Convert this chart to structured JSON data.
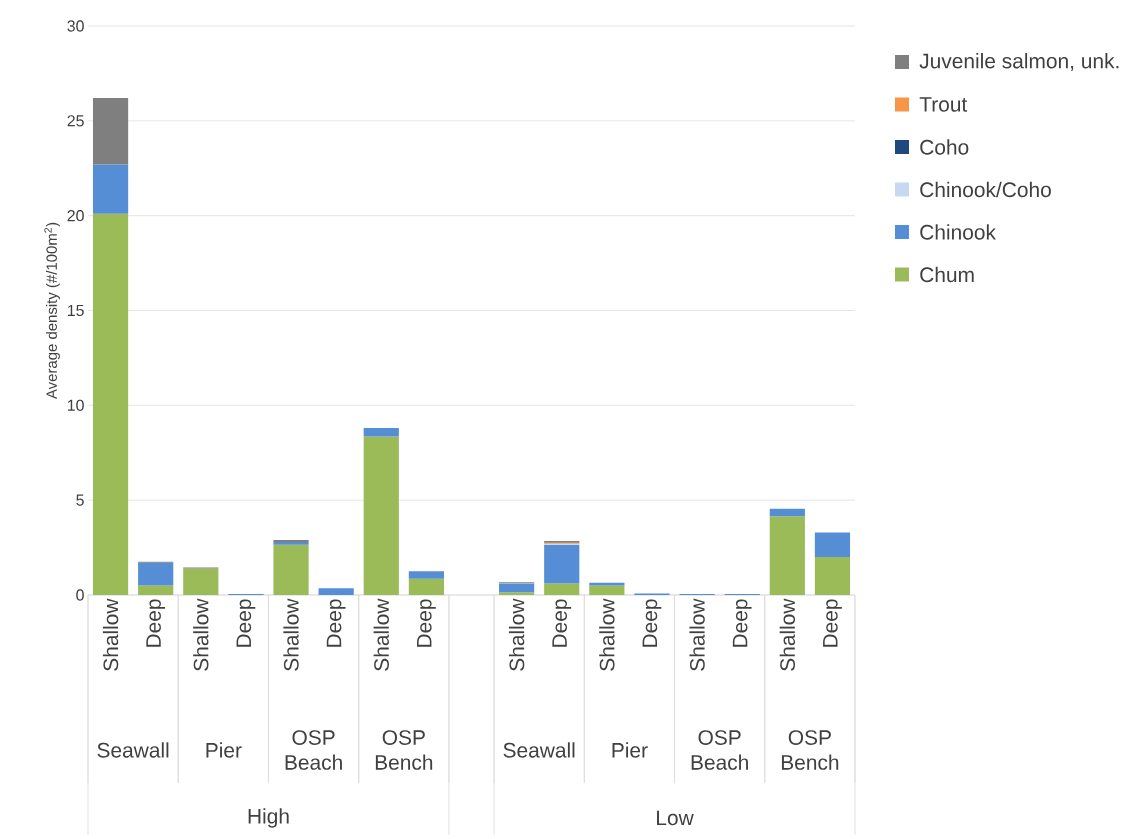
{
  "chart_data": {
    "type": "bar",
    "stacked": true,
    "ylabel": "Average density (#/100m$^{2}$)",
    "categories": [
      "Shallow",
      "Deep",
      "Shallow",
      "Deep",
      "Shallow",
      "Deep",
      "Shallow",
      "Deep",
      null,
      "Shallow",
      "Deep",
      "Shallow",
      "Deep",
      "Shallow",
      "Deep",
      "Shallow",
      "Deep"
    ],
    "series": [
      {
        "name": "Chum",
        "color": "#9bbb59",
        "values": [
          20.1,
          0.5,
          1.4,
          null,
          2.65,
          null,
          8.35,
          0.85,
          null,
          0.15,
          0.6,
          0.5,
          null,
          null,
          null,
          4.15,
          2.0
        ]
      },
      {
        "name": "Chinook",
        "color": "#558ed5",
        "values": [
          2.6,
          1.2,
          null,
          0.05,
          0.15,
          0.35,
          0.45,
          0.4,
          null,
          0.45,
          2.05,
          0.15,
          0.08,
          0.05,
          0.05,
          0.4,
          1.3
        ]
      },
      {
        "name": "Chinook/Coho",
        "color": "#c6d9f1",
        "values": [
          null,
          null,
          null,
          null,
          null,
          null,
          null,
          null,
          null,
          0.02,
          0.05,
          null,
          null,
          null,
          null,
          null,
          null
        ]
      },
      {
        "name": "Coho",
        "color": "#1f497d",
        "values": [
          null,
          null,
          null,
          null,
          null,
          null,
          null,
          null,
          null,
          null,
          null,
          null,
          null,
          null,
          null,
          null,
          null
        ]
      },
      {
        "name": "Trout",
        "color": "#f79646",
        "values": [
          null,
          null,
          null,
          null,
          null,
          null,
          null,
          null,
          null,
          null,
          0.05,
          null,
          null,
          null,
          null,
          null,
          null
        ]
      },
      {
        "name": "Juvenile salmon, unk.",
        "color": "#7f7f7f",
        "values": [
          3.5,
          0.05,
          0.05,
          null,
          0.1,
          null,
          null,
          null,
          null,
          0.05,
          0.1,
          null,
          null,
          null,
          null,
          null,
          null
        ]
      }
    ],
    "ylim": [
      0,
      30
    ],
    "yticks": [
      0,
      5,
      10,
      15,
      20,
      25,
      30
    ],
    "grid": "y",
    "legend": "top right",
    "annotations": [
      "Seawall",
      "Pier",
      "OSP Beach",
      "OSP Bench",
      "Seawall",
      "Pier",
      "OSP Beach",
      "OSP Bench",
      "High",
      "Low"
    ]
  }
}
